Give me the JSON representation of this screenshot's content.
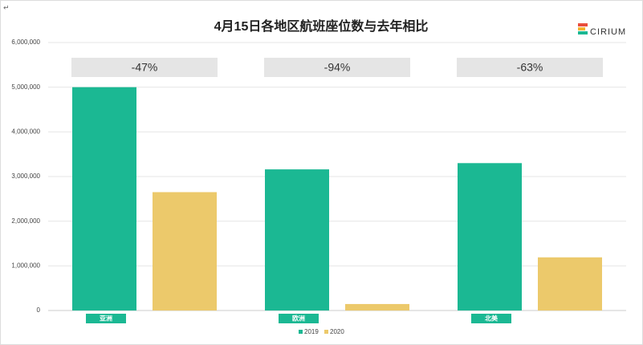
{
  "corner_mark": "↵",
  "logo": "CIRIUM",
  "chart_data": {
    "type": "bar",
    "title": "4月15日各地区航班座位数与去年相比",
    "categories": [
      "亚洲",
      "欧洲",
      "北美"
    ],
    "series": [
      {
        "name": "2019",
        "color": "#1bb893",
        "values": [
          5000000,
          3160000,
          3300000
        ]
      },
      {
        "name": "2020",
        "color": "#ecc96b",
        "values": [
          2650000,
          145000,
          1190000
        ]
      }
    ],
    "annotations": [
      "-47%",
      "-94%",
      "-63%"
    ],
    "ylim": [
      0,
      6000000
    ],
    "yticks": [
      0,
      {
        "value": 1000000,
        "label": "1,000,000"
      },
      {
        "value": 2000000,
        "label": "2,000,000"
      },
      {
        "value": 3000000,
        "label": "3,000,000"
      },
      {
        "value": 4000000,
        "label": "4,000,000"
      },
      {
        "value": 5000000,
        "label": "5,000,000"
      },
      {
        "value": 6000000,
        "label": "6,000,000"
      }
    ],
    "grid": true,
    "legend": "bottom"
  }
}
